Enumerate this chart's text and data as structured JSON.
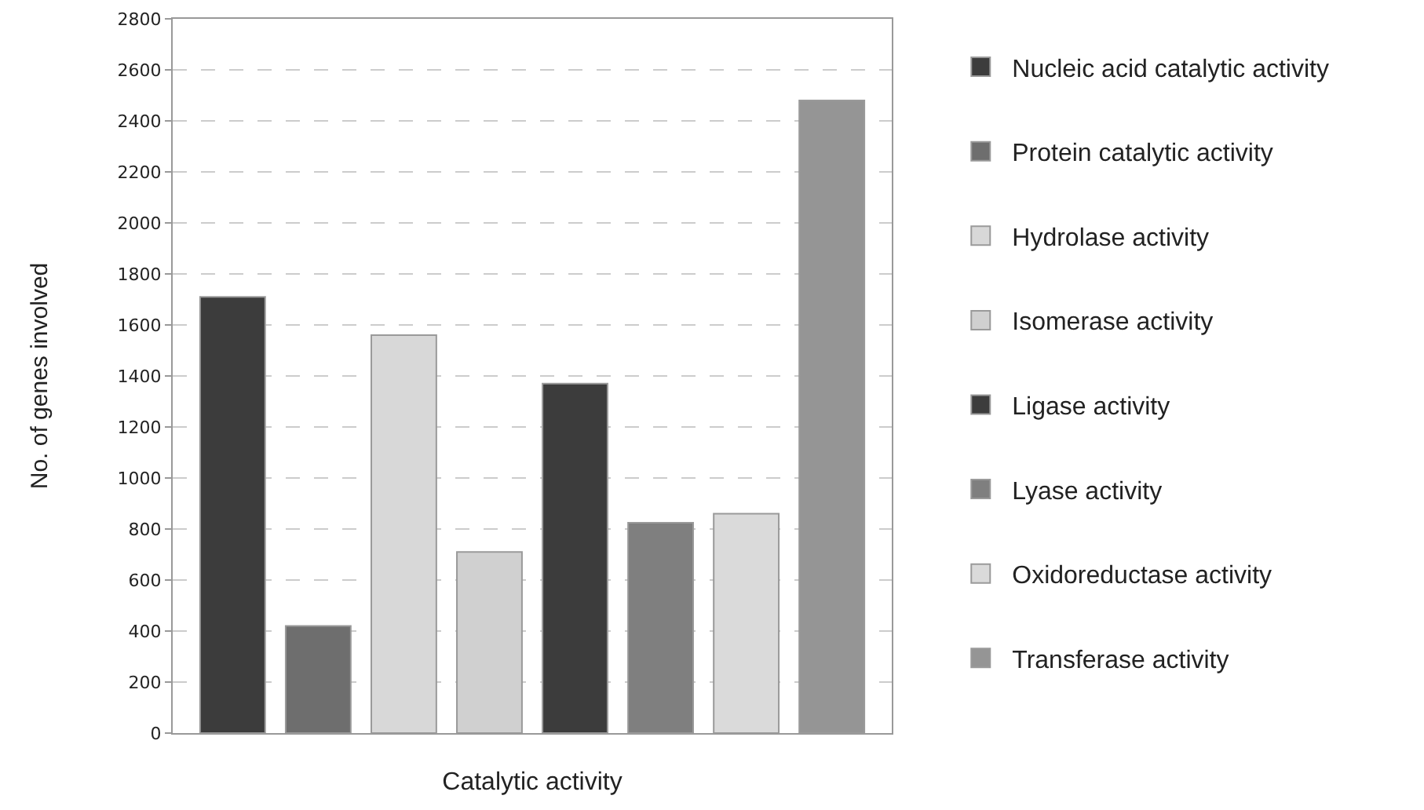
{
  "chart_data": {
    "type": "bar",
    "xlabel": "Catalytic activity",
    "ylabel": "No. of genes involved",
    "categories": [
      null,
      null,
      null,
      null,
      null,
      null,
      null,
      null
    ],
    "series": [
      {
        "name": "Nucleic acid catalytic activity",
        "color": "#3c3c3c",
        "values": [
          1710,
          null,
          null,
          null,
          null,
          null,
          null,
          null
        ]
      },
      {
        "name": "Protein catalytic activity",
        "color": "#6e6e6e",
        "values": [
          null,
          420,
          null,
          null,
          null,
          null,
          null,
          null
        ]
      },
      {
        "name": "Hydrolase activity",
        "color": "#d8d8d8",
        "values": [
          null,
          null,
          1560,
          null,
          null,
          null,
          null,
          null
        ]
      },
      {
        "name": "Isomerase activity",
        "color": "#d0d0d0",
        "values": [
          null,
          null,
          null,
          710,
          null,
          null,
          null,
          null
        ]
      },
      {
        "name": "Ligase activity",
        "color": "#3c3c3c",
        "values": [
          null,
          null,
          null,
          null,
          1370,
          null,
          null,
          null
        ]
      },
      {
        "name": "Lyase activity",
        "color": "#7f7f7f",
        "values": [
          null,
          null,
          null,
          null,
          null,
          825,
          null,
          null
        ]
      },
      {
        "name": "Oxidoreductase activity",
        "color": "#dadada",
        "values": [
          null,
          null,
          null,
          null,
          null,
          null,
          860,
          null
        ]
      },
      {
        "name": "Transferase activity",
        "color": "#959595",
        "values": [
          null,
          null,
          null,
          null,
          null,
          null,
          null,
          2480
        ]
      }
    ],
    "ylim": [
      0,
      2800
    ],
    "yticks": [
      0,
      200,
      400,
      600,
      800,
      1000,
      1200,
      1400,
      1600,
      1800,
      2000,
      2200,
      2400,
      2600,
      2800
    ],
    "grid": "y",
    "legend": "right"
  }
}
